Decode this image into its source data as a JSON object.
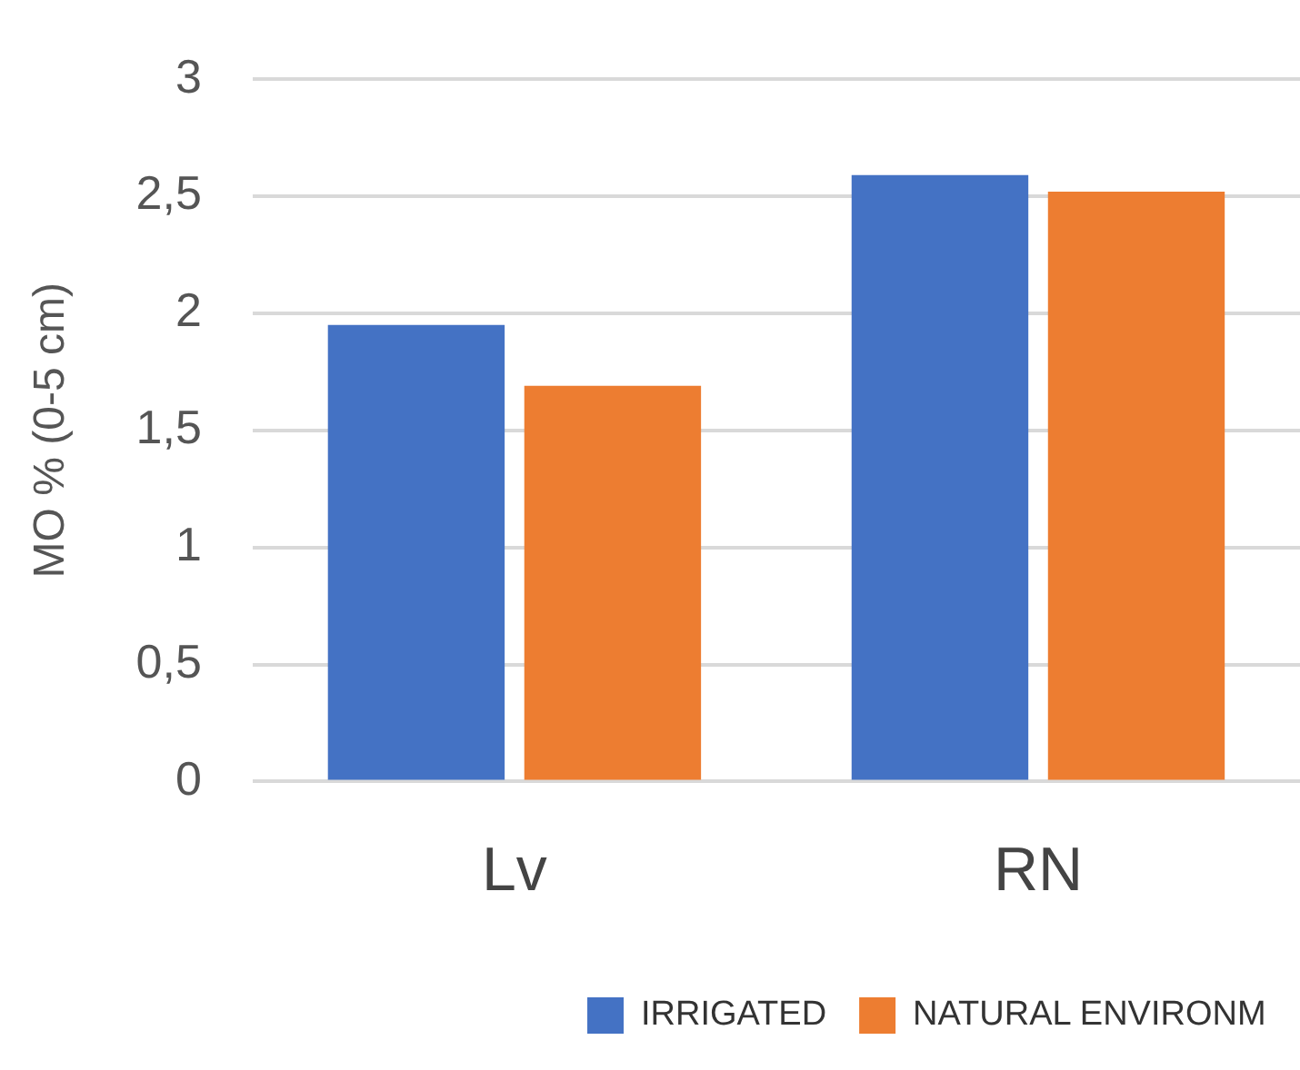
{
  "chart_data": {
    "type": "bar",
    "ylabel": "MO % (0-5 cm)",
    "categories": [
      "Lv",
      "RN"
    ],
    "series": [
      {
        "name": "IRRIGATED",
        "color": "#4472c4",
        "values": [
          1.95,
          2.59
        ]
      },
      {
        "name": "NATURAL ENVIRONM",
        "color": "#ed7d31",
        "values": [
          1.69,
          2.52
        ]
      }
    ],
    "ylim": [
      0,
      3
    ],
    "yticks": [
      0,
      {
        "value": 0.5,
        "label": "0,5"
      },
      1,
      {
        "value": 1.5,
        "label": "1,5"
      },
      2,
      {
        "value": 2.5,
        "label": "2,5"
      },
      3
    ],
    "grid": "y",
    "legend": "bottom"
  }
}
